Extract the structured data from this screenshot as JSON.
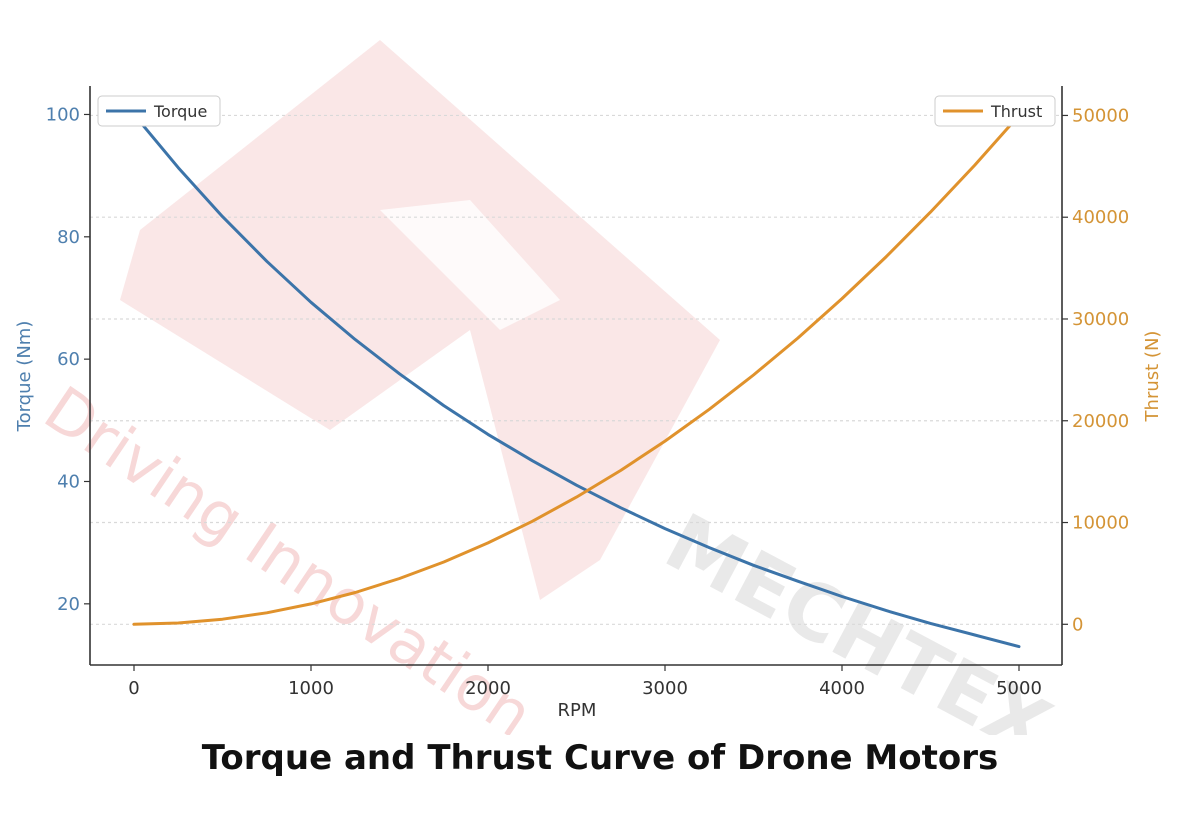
{
  "colors": {
    "torque": "#3c74a9",
    "thrust": "#e0922c",
    "axis": "#333333",
    "grid": "#d9d9d9",
    "torque_tick": "#4e7fae",
    "thrust_tick": "#d49436",
    "watermark_red": "#f4c9c9",
    "watermark_gray": "#e6e6e6"
  },
  "watermark": {
    "brand": "MECHTEX",
    "tagline": "Driving Innovation"
  },
  "chart_data": {
    "type": "line",
    "title": "Torque and Thrust Curve of Drone Motors",
    "xlabel": "RPM",
    "ylabel_left": "Torque (Nm)",
    "ylabel_right": "Thrust (N)",
    "xlim": [
      0,
      5000
    ],
    "ylim_left": [
      10,
      104
    ],
    "ylim_right": [
      -4000,
      52500
    ],
    "xticks": [
      0,
      1000,
      2000,
      3000,
      4000,
      5000
    ],
    "yticks_left": [
      20,
      40,
      60,
      80,
      100
    ],
    "yticks_right": [
      0,
      10000,
      20000,
      30000,
      40000,
      50000
    ],
    "grid": true,
    "series": [
      {
        "name": "Torque",
        "axis": "left",
        "legend": "top-left",
        "x": [
          0,
          250,
          500,
          750,
          1000,
          1250,
          1500,
          1750,
          2000,
          2250,
          2500,
          2750,
          3000,
          3250,
          3500,
          3750,
          4000,
          4250,
          4500,
          4750,
          5000
        ],
        "values": [
          100,
          91.3,
          83.3,
          76.0,
          69.3,
          63.2,
          57.6,
          52.4,
          47.7,
          43.4,
          39.4,
          35.7,
          32.3,
          29.2,
          26.3,
          23.7,
          21.2,
          18.9,
          16.8,
          14.9,
          13.0
        ]
      },
      {
        "name": "Thrust",
        "axis": "right",
        "legend": "top-right",
        "x": [
          0,
          250,
          500,
          750,
          1000,
          1250,
          1500,
          1750,
          2000,
          2250,
          2500,
          2750,
          3000,
          3250,
          3500,
          3750,
          4000,
          4250,
          4500,
          4750,
          5000
        ],
        "values": [
          0,
          125,
          500,
          1125,
          2000,
          3125,
          4500,
          6125,
          8000,
          10125,
          12500,
          15125,
          18000,
          21125,
          24500,
          28125,
          32000,
          36125,
          40500,
          45125,
          50000
        ]
      }
    ]
  }
}
